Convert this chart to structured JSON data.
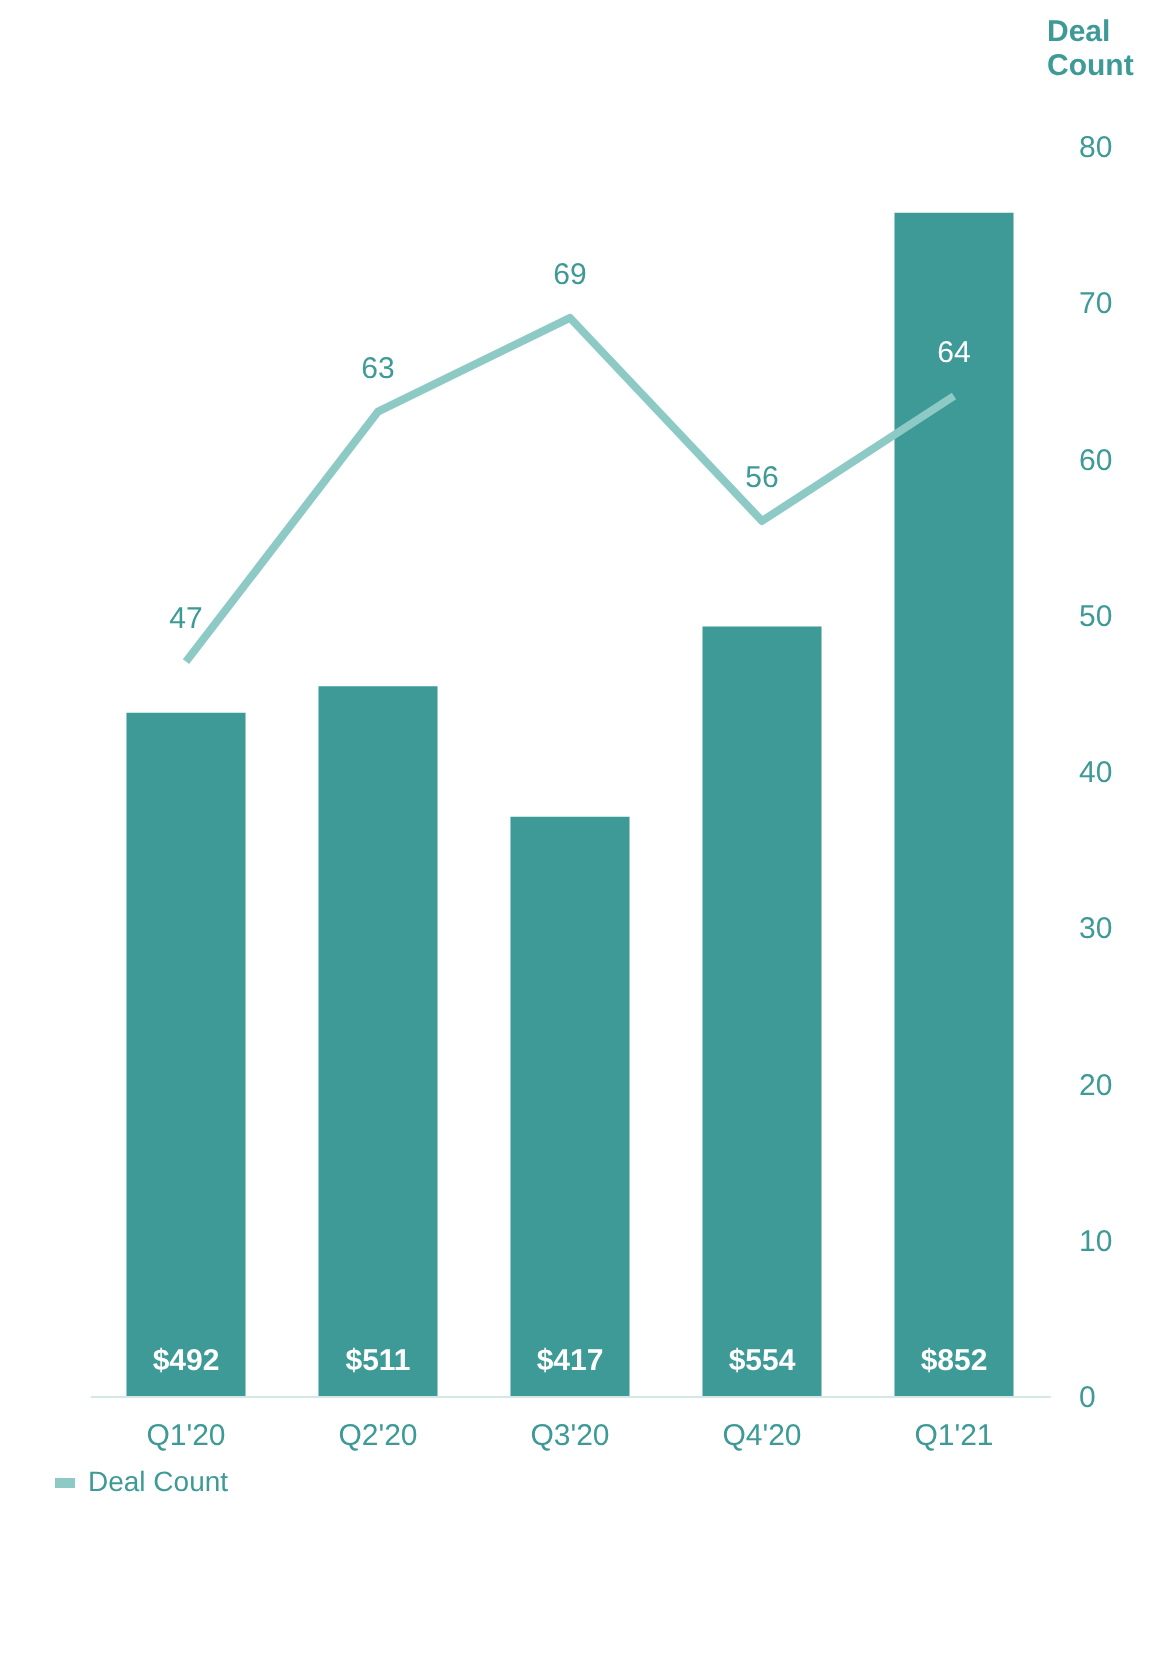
{
  "chart_data": {
    "type": "bar",
    "categories": [
      "Q1'20",
      "Q2'20",
      "Q3'20",
      "Q4'20",
      "Q1'21"
    ],
    "y2label": "Deal Count",
    "y2lim": [
      0,
      80
    ],
    "y2ticks": [
      0,
      10,
      20,
      30,
      40,
      50,
      60,
      70,
      80
    ],
    "grid": false,
    "legend": "bottom left",
    "series": [
      {
        "color": "#3e9a97",
        "values": [
          492,
          511,
          417,
          554,
          852
        ],
        "value_labels": [
          "$492",
          "$511",
          "$417",
          "$554",
          "$852"
        ]
      },
      {
        "type": "line",
        "name": "Deal Count",
        "axis": "y2",
        "color": "#8ecac5",
        "values": [
          47,
          63,
          69,
          56,
          64
        ],
        "data_labels": true
      }
    ]
  }
}
